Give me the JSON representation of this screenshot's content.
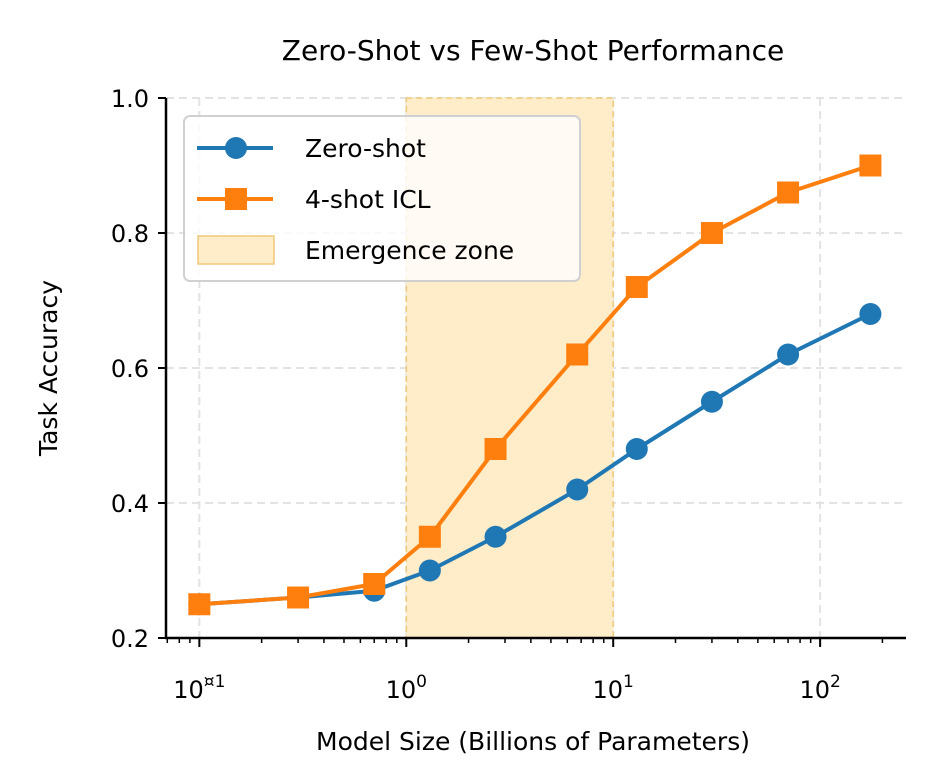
{
  "chart_data": {
    "type": "line",
    "title": "Zero-Shot vs Few-Shot Performance",
    "xlabel": "Model Size (Billions of Parameters)",
    "ylabel": "Task Accuracy",
    "xscale": "log",
    "xlim": [
      0.069,
      260
    ],
    "ylim": [
      0.2,
      1.0
    ],
    "grid": true,
    "legend_position": "top-left",
    "x": [
      0.1,
      0.3,
      0.7,
      1.3,
      2.7,
      6.7,
      13,
      30,
      70,
      175
    ],
    "series": [
      {
        "name": "Zero-shot",
        "color": "#1f77b4",
        "marker": "circle",
        "values": [
          0.25,
          0.26,
          0.27,
          0.3,
          0.35,
          0.42,
          0.48,
          0.55,
          0.62,
          0.68
        ]
      },
      {
        "name": "4-shot ICL",
        "color": "#ff7f0e",
        "marker": "square",
        "values": [
          0.25,
          0.26,
          0.28,
          0.35,
          0.48,
          0.62,
          0.72,
          0.8,
          0.86,
          0.9
        ]
      }
    ],
    "shaded_region": {
      "name": "Emergence zone",
      "x_range": [
        1,
        10
      ],
      "color": "#ffecc8",
      "edge_color": "#f0c878"
    },
    "xticks": [
      {
        "value": 0.1,
        "base": "10",
        "exp": "¤1"
      },
      {
        "value": 1,
        "base": "10",
        "exp": "0"
      },
      {
        "value": 10,
        "base": "10",
        "exp": "1"
      },
      {
        "value": 100,
        "base": "10",
        "exp": "2"
      }
    ],
    "yticks": [
      "0.2",
      "0.4",
      "0.6",
      "0.8",
      "1.0"
    ]
  }
}
